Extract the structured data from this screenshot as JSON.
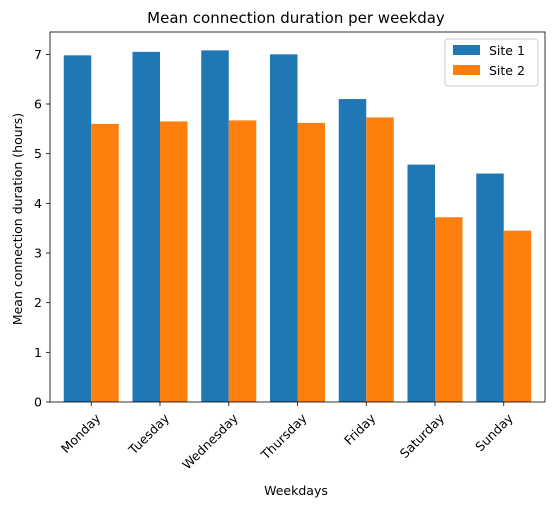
{
  "chart_data": {
    "type": "bar",
    "title": "Mean connection duration per weekday",
    "xlabel": "Weekdays",
    "ylabel": "Mean connection duration (hours)",
    "categories": [
      "Monday",
      "Tuesday",
      "Wednesday",
      "Thursday",
      "Friday",
      "Saturday",
      "Sunday"
    ],
    "series": [
      {
        "name": "Site 1",
        "color": "#1f77b4",
        "values": [
          6.98,
          7.05,
          7.08,
          7.0,
          6.1,
          4.78,
          4.6
        ]
      },
      {
        "name": "Site 2",
        "color": "#ff7f0e",
        "values": [
          5.6,
          5.65,
          5.67,
          5.62,
          5.73,
          3.72,
          3.45
        ]
      }
    ],
    "ylim": [
      0,
      7.45
    ],
    "yticks": [
      "0",
      "1",
      "2",
      "3",
      "4",
      "5",
      "6",
      "7"
    ],
    "grid": false,
    "legend_position": "top-right"
  }
}
